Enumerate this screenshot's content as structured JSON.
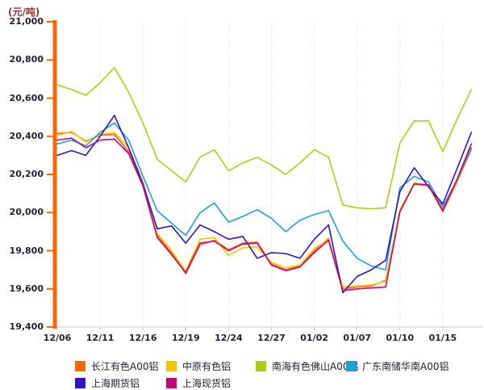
{
  "chart_data": {
    "type": "line",
    "title": "",
    "ylabel": "(元/吨)",
    "ylim": [
      19400,
      21000
    ],
    "ytick_step": 200,
    "grid": "vertical-dotted",
    "legend_position": "bottom",
    "x": [
      "12/06",
      "12/09",
      "12/10",
      "12/11",
      "12/12",
      "12/13",
      "12/16",
      "12/17",
      "12/18",
      "12/19",
      "12/20",
      "12/23",
      "12/24",
      "12/25",
      "12/26",
      "12/27",
      "12/30",
      "12/31",
      "01/02",
      "01/03",
      "01/06",
      "01/07",
      "01/08",
      "01/09",
      "01/10",
      "01/13",
      "01/14",
      "01/15",
      "01/16",
      "01/17"
    ],
    "xtick_labels": [
      "12/06",
      "12/11",
      "12/16",
      "12/19",
      "12/24",
      "12/27",
      "01/02",
      "01/07",
      "01/10",
      "01/15"
    ],
    "xtick_every": 3,
    "series": [
      {
        "name": "长江有色A00铝",
        "color": "#FF6600",
        "values": [
          20415,
          20420,
          20375,
          20405,
          20410,
          20320,
          20150,
          19880,
          19790,
          19680,
          19830,
          19855,
          19805,
          19840,
          19845,
          19730,
          19700,
          19720,
          19800,
          19865,
          19600,
          19610,
          19615,
          19645,
          20010,
          20150,
          20140,
          20005,
          20160,
          20330
        ]
      },
      {
        "name": "中原有色铝",
        "color": "#F2C500",
        "values": [
          20405,
          20425,
          20370,
          20410,
          20420,
          20340,
          20160,
          19890,
          19800,
          19695,
          19860,
          19870,
          19775,
          19815,
          19820,
          19740,
          19710,
          19725,
          19810,
          19860,
          19610,
          19615,
          19620,
          19640,
          20015,
          20155,
          20145,
          20015,
          20165,
          20340
        ]
      },
      {
        "name": "南海有色佛山A00铝",
        "color": "#A9D113",
        "values": [
          20670,
          20645,
          20615,
          20680,
          20760,
          20630,
          20470,
          20280,
          20220,
          20160,
          20290,
          20330,
          20220,
          20260,
          20290,
          20250,
          20200,
          20260,
          20330,
          20290,
          20040,
          20025,
          20020,
          20025,
          20365,
          20480,
          20480,
          20320,
          20490,
          20645
        ]
      },
      {
        "name": "广东南储华南A00铝",
        "color": "#1E9FD9",
        "values": [
          20360,
          20380,
          20350,
          20420,
          20470,
          20380,
          20190,
          20010,
          19945,
          19880,
          20000,
          20050,
          19950,
          19980,
          20015,
          19970,
          19900,
          19960,
          19990,
          20010,
          19850,
          19760,
          19720,
          19700,
          20130,
          20190,
          20160,
          20030,
          20170,
          20340
        ]
      },
      {
        "name": "上海期货铝",
        "color": "#3311CC",
        "values": [
          20300,
          20325,
          20300,
          20400,
          20510,
          20340,
          20150,
          19915,
          19930,
          19840,
          19935,
          19900,
          19860,
          19875,
          19760,
          19790,
          19785,
          19760,
          19860,
          19935,
          19580,
          19665,
          19700,
          19750,
          20110,
          20235,
          20135,
          20045,
          20230,
          20420
        ]
      },
      {
        "name": "上海现货铝",
        "color": "#C20877",
        "values": [
          20380,
          20390,
          20340,
          20380,
          20385,
          20310,
          20140,
          19870,
          19780,
          19685,
          19840,
          19850,
          19800,
          19835,
          19840,
          19725,
          19695,
          19715,
          19790,
          19855,
          19590,
          19600,
          19605,
          19610,
          20005,
          20150,
          20145,
          20010,
          20175,
          20360
        ]
      }
    ],
    "axis_colors": {
      "y_axis": "#FF6600",
      "x_axis": "#CCCCCC",
      "gridline": "#DDDDDD",
      "tick_label": "#222233",
      "ylabel_color": "#993333"
    }
  }
}
